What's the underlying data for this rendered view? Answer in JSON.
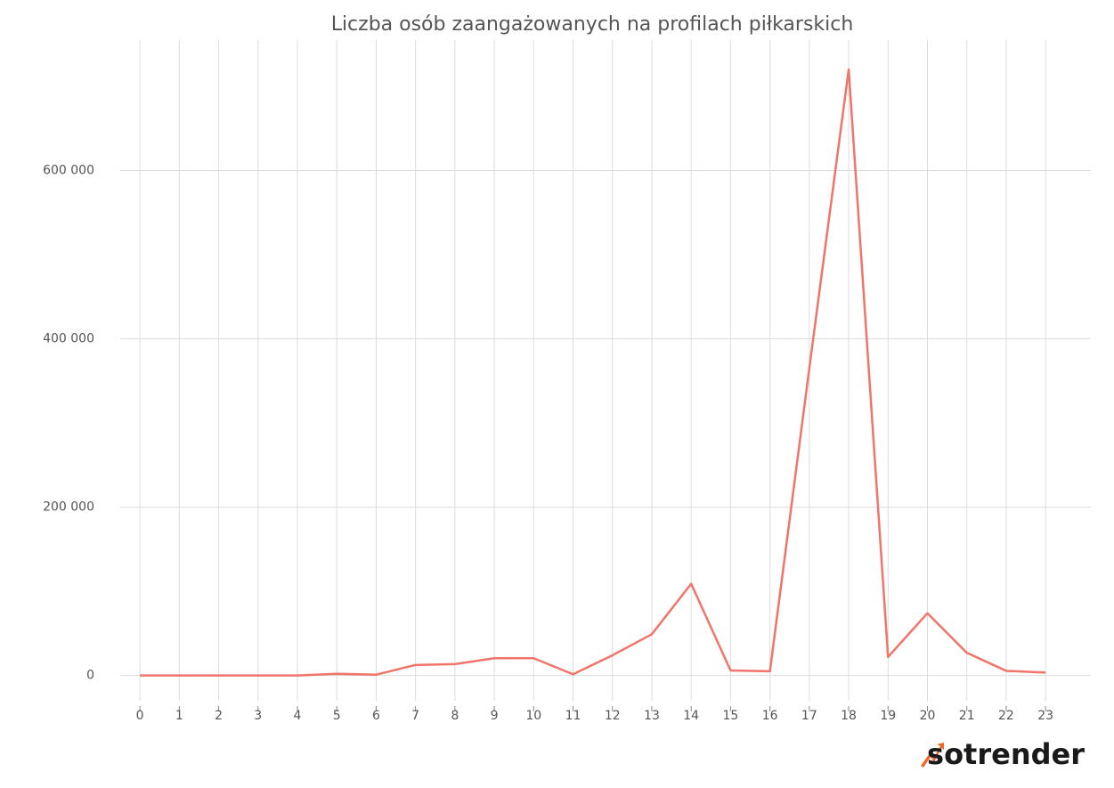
{
  "chart_data": {
    "type": "line",
    "title": "Liczba osób zaangażowanych na profilach piłkarskich",
    "logo": "sotrender",
    "x": [
      0,
      1,
      2,
      3,
      4,
      5,
      6,
      7,
      8,
      9,
      10,
      11,
      12,
      13,
      14,
      15,
      16,
      17,
      18,
      19,
      20,
      21,
      22,
      23
    ],
    "series": [
      {
        "name": "Liczba osób zaangażowanych",
        "color": "#f07469",
        "values": [
          0,
          0,
          0,
          0,
          0,
          2000,
          1000,
          12500,
          13500,
          20500,
          20500,
          1500,
          24000,
          49000,
          109000,
          6000,
          5000,
          365000,
          720000,
          22000,
          74000,
          27000,
          5500,
          3500
        ]
      }
    ],
    "xlim": [
      -0.5,
      24.15
    ],
    "xticks": [
      0,
      1,
      2,
      3,
      4,
      5,
      6,
      7,
      8,
      9,
      10,
      11,
      12,
      13,
      14,
      15,
      16,
      17,
      18,
      19,
      20,
      21,
      22,
      23
    ],
    "ylim": [
      -30000,
      755000
    ],
    "yticks": [
      0,
      {
        "value": 200000,
        "label": "200 000"
      },
      {
        "value": 400000,
        "label": "400 000"
      },
      {
        "value": 600000,
        "label": "600 000"
      }
    ],
    "grid": true
  }
}
